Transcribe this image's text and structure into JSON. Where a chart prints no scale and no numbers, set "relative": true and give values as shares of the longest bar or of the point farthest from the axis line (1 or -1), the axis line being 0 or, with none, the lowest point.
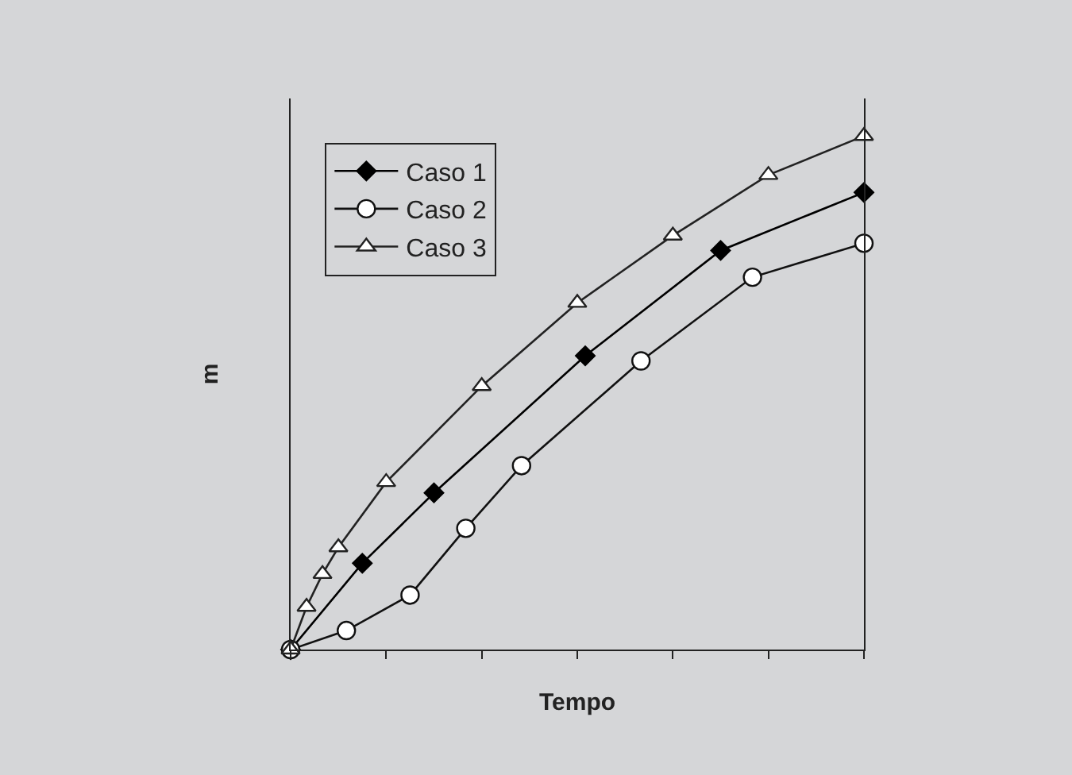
{
  "chart_data": {
    "type": "line",
    "relative": true,
    "xlabel": "Tempo",
    "ylabel": "m",
    "categories": [
      null,
      null,
      null,
      null,
      null,
      null,
      null,
      null,
      null,
      null,
      null,
      null,
      null,
      null,
      null,
      null,
      null,
      null,
      null,
      null,
      null,
      null,
      null,
      null,
      null,
      null,
      null,
      null,
      null,
      null,
      null,
      null,
      null,
      null,
      null,
      null,
      null,
      null,
      null,
      null,
      null,
      null,
      null,
      null,
      null,
      null,
      null,
      null,
      null,
      null,
      null,
      null,
      null,
      null,
      null,
      null,
      null,
      null,
      null,
      null,
      null,
      null,
      null,
      null,
      null,
      null,
      null,
      null,
      null,
      null,
      null,
      null,
      null
    ],
    "tick_labels": false,
    "grid": false,
    "legend": "top left",
    "line_style": "solid",
    "series": [
      {
        "name": "Caso 1",
        "color": "#000000",
        "marker": "diamond",
        "values": [
          0,
          null,
          null,
          null,
          null,
          null,
          null,
          null,
          null,
          0.168,
          null,
          null,
          null,
          null,
          null,
          null,
          null,
          null,
          0.305,
          null,
          null,
          null,
          null,
          null,
          null,
          null,
          null,
          null,
          null,
          null,
          null,
          null,
          null,
          null,
          null,
          null,
          null,
          0.572,
          null,
          null,
          null,
          null,
          null,
          null,
          null,
          null,
          null,
          null,
          null,
          null,
          null,
          null,
          null,
          null,
          0.777,
          null,
          null,
          null,
          null,
          null,
          null,
          null,
          null,
          null,
          null,
          null,
          null,
          null,
          null,
          null,
          null,
          null,
          0.89
        ]
      },
      {
        "name": "Caso 2",
        "color": "#111111",
        "marker": "circle",
        "values": [
          0,
          null,
          null,
          null,
          null,
          null,
          null,
          0.037,
          null,
          null,
          null,
          null,
          null,
          null,
          null,
          0.106,
          null,
          null,
          null,
          null,
          null,
          null,
          0.236,
          null,
          null,
          null,
          null,
          null,
          null,
          0.358,
          null,
          null,
          null,
          null,
          null,
          null,
          null,
          null,
          null,
          null,
          null,
          null,
          null,
          null,
          0.562,
          null,
          null,
          null,
          null,
          null,
          null,
          null,
          null,
          null,
          null,
          null,
          null,
          null,
          0.725,
          null,
          null,
          null,
          null,
          null,
          null,
          null,
          null,
          null,
          null,
          null,
          null,
          null,
          0.791
        ]
      },
      {
        "name": "Caso 3",
        "color": "#222222",
        "marker": "triangle",
        "values": [
          0,
          null,
          0.083,
          null,
          0.147,
          null,
          0.199,
          null,
          null,
          null,
          null,
          null,
          0.326,
          null,
          null,
          null,
          null,
          null,
          null,
          null,
          null,
          null,
          null,
          null,
          0.513,
          null,
          null,
          null,
          null,
          null,
          null,
          null,
          null,
          null,
          null,
          null,
          0.675,
          null,
          null,
          null,
          null,
          null,
          null,
          null,
          null,
          null,
          null,
          null,
          0.806,
          null,
          null,
          null,
          null,
          null,
          null,
          null,
          null,
          null,
          null,
          null,
          0.924,
          null,
          null,
          null,
          null,
          null,
          null,
          null,
          null,
          null,
          null,
          null,
          1
        ]
      }
    ]
  }
}
